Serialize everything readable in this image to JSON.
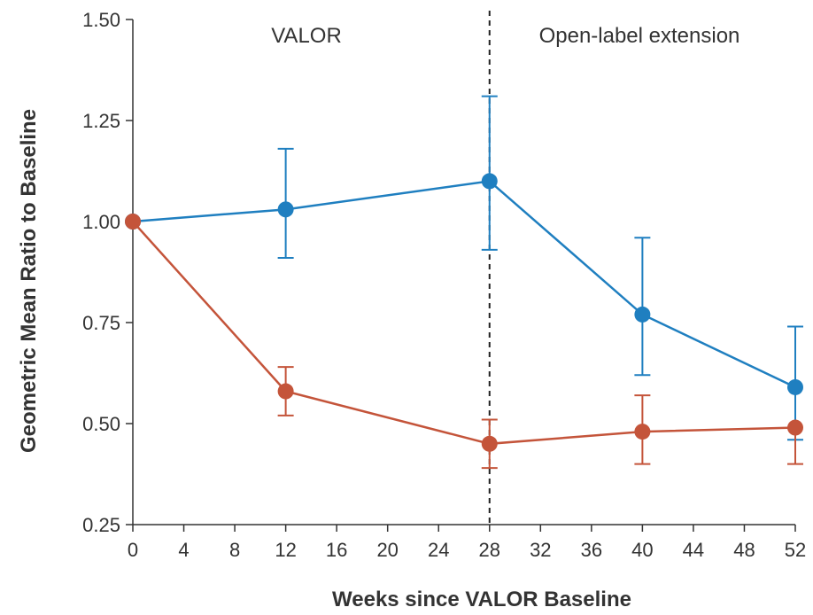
{
  "chart_data": {
    "type": "line",
    "xlabel": "Weeks since VALOR Baseline",
    "ylabel": "Geometric Mean Ratio to Baseline",
    "xlim": [
      0,
      52
    ],
    "ylim": [
      0.25,
      1.5
    ],
    "xticks": [
      "0",
      "4",
      "8",
      "12",
      "16",
      "20",
      "24",
      "28",
      "32",
      "36",
      "40",
      "44",
      "48",
      "52"
    ],
    "yticks": [
      "0.25",
      "0.50",
      "0.75",
      "1.00",
      "1.25",
      "1.50"
    ],
    "grid": false,
    "reference_line": {
      "x": 28,
      "style": "dashed"
    },
    "regions": [
      {
        "label": "VALOR",
        "x_range": [
          0,
          28
        ]
      },
      {
        "label": "Open-label extension",
        "x_range": [
          28,
          52
        ]
      }
    ],
    "series": [
      {
        "color": "#1f7fc0",
        "x": [
          0,
          12,
          28,
          40,
          52
        ],
        "y": [
          1.0,
          1.03,
          1.1,
          0.77,
          0.59
        ],
        "err_low": [
          null,
          0.91,
          0.93,
          0.62,
          0.46
        ],
        "err_high": [
          null,
          1.18,
          1.31,
          0.96,
          0.74
        ]
      },
      {
        "color": "#c4543a",
        "x": [
          0,
          12,
          28,
          40,
          52
        ],
        "y": [
          1.0,
          0.58,
          0.45,
          0.48,
          0.49
        ],
        "err_low": [
          null,
          0.52,
          0.39,
          0.4,
          0.4
        ],
        "err_high": [
          null,
          0.64,
          0.51,
          0.57,
          null
        ]
      }
    ]
  }
}
